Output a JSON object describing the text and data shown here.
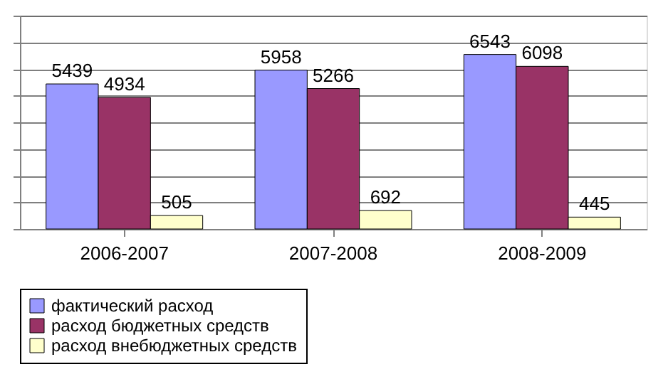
{
  "chart_data": {
    "type": "bar",
    "categories": [
      "2006-2007",
      "2007-2008",
      "2008-2009"
    ],
    "series": [
      {
        "name": "фактический расход",
        "color": "#9999ff",
        "values": [
          5439,
          5958,
          6543
        ]
      },
      {
        "name": "расход бюджетных средств",
        "color": "#993366",
        "values": [
          4934,
          5266,
          6098
        ]
      },
      {
        "name": "расход внебюджетных средств",
        "color": "#ffffcc",
        "values": [
          505,
          692,
          445
        ]
      }
    ],
    "ylim": [
      0,
      8000
    ],
    "yticks": [
      {
        "value": 0,
        "label": null
      },
      {
        "value": 1000,
        "label": null
      },
      {
        "value": 2000,
        "label": null
      },
      {
        "value": 3000,
        "label": null
      },
      {
        "value": 4000,
        "label": null
      },
      {
        "value": 5000,
        "label": null
      },
      {
        "value": 6000,
        "label": null
      },
      {
        "value": 7000,
        "label": null
      },
      {
        "value": 8000,
        "label": null
      }
    ],
    "grid": "y",
    "legend": "bottom",
    "tick_labels": "x",
    "data_labels": true
  }
}
